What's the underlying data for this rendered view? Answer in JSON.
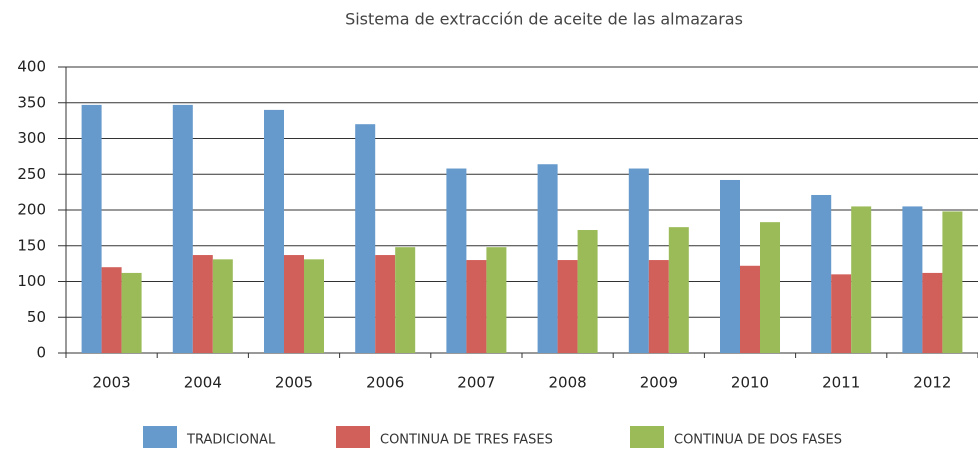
{
  "chart_data": {
    "type": "bar",
    "title": "Sistema de extracción de aceite de las almazaras",
    "categories": [
      "2003",
      "2004",
      "2005",
      "2006",
      "2007",
      "2008",
      "2009",
      "2010",
      "2011",
      "2012"
    ],
    "series": [
      {
        "name": "TRADICIONAL",
        "color": "#6699cc",
        "values": [
          347,
          347,
          340,
          320,
          258,
          264,
          258,
          242,
          221,
          205
        ]
      },
      {
        "name": "CONTINUA DE TRES FASES",
        "color": "#d1605a",
        "values": [
          120,
          137,
          137,
          137,
          130,
          130,
          130,
          122,
          110,
          112
        ]
      },
      {
        "name": "CONTINUA DE DOS FASES",
        "color": "#9bbb59",
        "values": [
          112,
          131,
          131,
          148,
          148,
          172,
          176,
          183,
          205,
          198
        ]
      }
    ],
    "ylim": [
      0,
      400
    ],
    "yticks": [
      0,
      50,
      100,
      150,
      200,
      250,
      300,
      350,
      400
    ],
    "grid": true
  }
}
